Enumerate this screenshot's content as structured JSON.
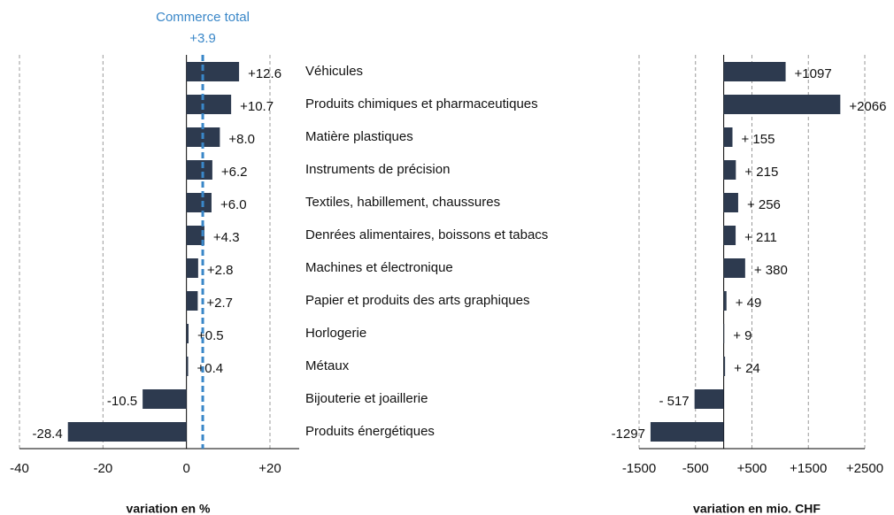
{
  "chart_data": [
    {
      "type": "hbar",
      "xlabel": "variation en %",
      "categories": [
        "Véhicules",
        "Produits chimiques et pharmaceutiques",
        "Matière plastiques",
        "Instruments de précision",
        "Textiles, habillement, chaussures",
        "Denrées alimentaires, boissons et tabacs",
        "Machines et électronique",
        "Papier et produits des arts graphiques",
        "Horlogerie",
        "Métaux",
        "Bijouterie et joaillerie",
        "Produits énergétiques"
      ],
      "values": [
        12.6,
        10.7,
        8.0,
        6.2,
        6.0,
        4.3,
        2.8,
        2.7,
        0.5,
        0.4,
        -10.5,
        -28.4
      ],
      "value_labels": [
        "+12.6",
        "+10.7",
        "+8.0",
        "+6.2",
        "+6.0",
        "+4.3",
        "+2.8",
        "+2.7",
        "+0.5",
        "+0.4",
        "-10.5",
        "-28.4"
      ],
      "color": "#2d3a4f",
      "xlim": [
        -40,
        27
      ],
      "xticks": [
        -40,
        -20,
        0,
        {
          "value": 20,
          "label": "+20"
        }
      ],
      "grid": true,
      "reference": {
        "label": "Commerce total",
        "value": 3.9,
        "value_label": "+3.9",
        "color": "#3a87c8"
      }
    },
    {
      "type": "hbar",
      "xlabel": "variation en mio. CHF",
      "values": [
        1097,
        2066,
        155,
        215,
        256,
        211,
        380,
        49,
        9,
        24,
        -517,
        -1297
      ],
      "value_labels": [
        "+1097",
        "+2066",
        "+ 155",
        "+ 215",
        "+ 256",
        "+ 211",
        "+ 380",
        "+ 49",
        "+ 9",
        "+ 24",
        "- 517",
        "-1297"
      ],
      "color": "#2d3a4f",
      "xlim": [
        -1500,
        2500
      ],
      "xticks": [
        -1500,
        -500,
        {
          "value": 500,
          "label": "+500"
        },
        {
          "value": 1500,
          "label": "+1500"
        },
        {
          "value": 2500,
          "label": "+2500"
        }
      ],
      "grid": true
    }
  ]
}
